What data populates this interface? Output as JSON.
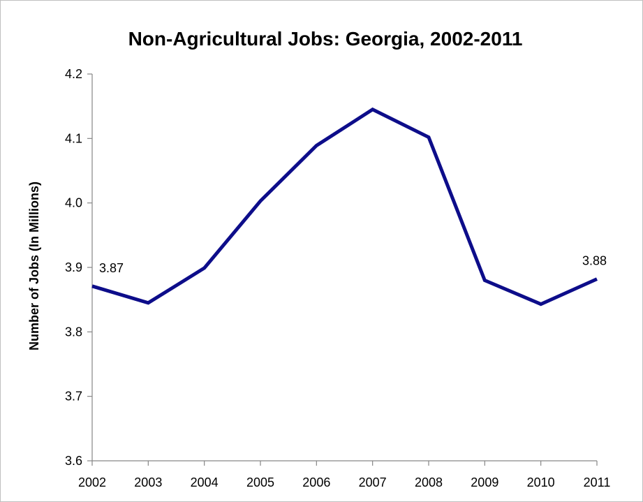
{
  "chart_data": {
    "type": "line",
    "title": "Non-Agricultural Jobs: Georgia, 2002-2011",
    "xlabel": "",
    "ylabel": "Number of Jobs (In Millions)",
    "x": [
      "2002",
      "2003",
      "2004",
      "2005",
      "2006",
      "2007",
      "2008",
      "2009",
      "2010",
      "2011"
    ],
    "series": [
      {
        "values": [
          3.871,
          3.845,
          3.899,
          4.003,
          4.089,
          4.145,
          4.102,
          3.88,
          3.843,
          3.882
        ],
        "color": "#0d0d8a"
      }
    ],
    "ylim": [
      3.6,
      4.2
    ],
    "yticks": [
      "3.6",
      "3.7",
      "3.8",
      "3.9",
      "4.0",
      "4.1",
      "4.2"
    ],
    "data_labels": [
      {
        "index": 0,
        "text": "3.87"
      },
      {
        "index": 9,
        "text": "3.88"
      }
    ],
    "grid": false,
    "legend": "none"
  }
}
